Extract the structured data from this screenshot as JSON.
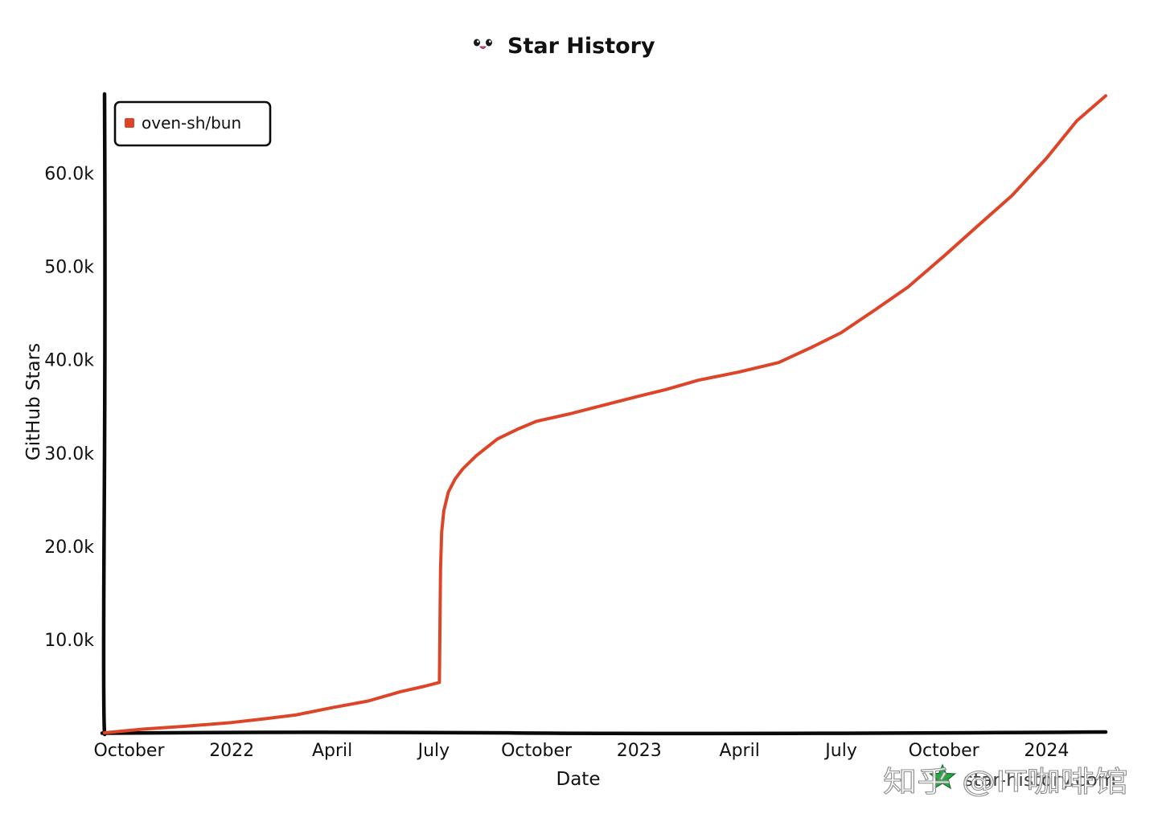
{
  "chart_data": {
    "type": "line",
    "title": "Star History",
    "xlabel": "Date",
    "ylabel": "GitHub Stars",
    "xlim": [
      "2021-09-09",
      "2024-02-23"
    ],
    "ylim": [
      0,
      68400
    ],
    "grid": false,
    "legend": {
      "position": "top-left"
    },
    "x_ticks": [
      {
        "label": "October",
        "date": "2021-10-01"
      },
      {
        "label": "2022",
        "date": "2022-01-01"
      },
      {
        "label": "April",
        "date": "2022-04-01"
      },
      {
        "label": "July",
        "date": "2022-07-01"
      },
      {
        "label": "October",
        "date": "2022-10-01"
      },
      {
        "label": "2023",
        "date": "2023-01-01"
      },
      {
        "label": "April",
        "date": "2023-04-01"
      },
      {
        "label": "July",
        "date": "2023-07-01"
      },
      {
        "label": "October",
        "date": "2023-10-01"
      },
      {
        "label": "2024",
        "date": "2024-01-01"
      }
    ],
    "y_ticks": [
      {
        "label": "10.0k",
        "value": 10000
      },
      {
        "label": "20.0k",
        "value": 20000
      },
      {
        "label": "30.0k",
        "value": 30000
      },
      {
        "label": "40.0k",
        "value": 40000
      },
      {
        "label": "50.0k",
        "value": 50000
      },
      {
        "label": "60.0k",
        "value": 60000
      }
    ],
    "series": [
      {
        "name": "oven-sh/bun",
        "color": "#dd4528",
        "points": [
          {
            "x": "2021-09-09",
            "y": 0
          },
          {
            "x": "2021-10-14",
            "y": 400
          },
          {
            "x": "2021-11-20",
            "y": 700
          },
          {
            "x": "2022-01-01",
            "y": 1100
          },
          {
            "x": "2022-01-30",
            "y": 1500
          },
          {
            "x": "2022-02-27",
            "y": 1900
          },
          {
            "x": "2022-04-01",
            "y": 2700
          },
          {
            "x": "2022-05-03",
            "y": 3400
          },
          {
            "x": "2022-06-01",
            "y": 4400
          },
          {
            "x": "2022-06-23",
            "y": 5000
          },
          {
            "x": "2022-07-06",
            "y": 5400
          },
          {
            "x": "2022-07-07",
            "y": 17500
          },
          {
            "x": "2022-07-08",
            "y": 21500
          },
          {
            "x": "2022-07-10",
            "y": 23800
          },
          {
            "x": "2022-07-14",
            "y": 25800
          },
          {
            "x": "2022-07-20",
            "y": 27200
          },
          {
            "x": "2022-07-27",
            "y": 28300
          },
          {
            "x": "2022-08-08",
            "y": 29700
          },
          {
            "x": "2022-08-27",
            "y": 31500
          },
          {
            "x": "2022-09-15",
            "y": 32600
          },
          {
            "x": "2022-10-01",
            "y": 33400
          },
          {
            "x": "2022-10-31",
            "y": 34200
          },
          {
            "x": "2022-12-06",
            "y": 35300
          },
          {
            "x": "2023-01-01",
            "y": 36100
          },
          {
            "x": "2023-01-25",
            "y": 36800
          },
          {
            "x": "2023-02-23",
            "y": 37800
          },
          {
            "x": "2023-04-01",
            "y": 38700
          },
          {
            "x": "2023-05-06",
            "y": 39700
          },
          {
            "x": "2023-06-04",
            "y": 41300
          },
          {
            "x": "2023-07-01",
            "y": 42900
          },
          {
            "x": "2023-08-01",
            "y": 45400
          },
          {
            "x": "2023-08-30",
            "y": 47800
          },
          {
            "x": "2023-10-01",
            "y": 51100
          },
          {
            "x": "2023-10-30",
            "y": 54200
          },
          {
            "x": "2023-12-01",
            "y": 57600
          },
          {
            "x": "2024-01-01",
            "y": 61600
          },
          {
            "x": "2024-01-28",
            "y": 65600
          },
          {
            "x": "2024-02-23",
            "y": 68300
          }
        ]
      }
    ]
  },
  "branding": {
    "site": "star-history.com",
    "title_icon": "face-icon",
    "logo_icon": "star-history-logo-icon",
    "logo_color": "#2aa745"
  },
  "watermark": {
    "text": "知乎 @IT咖啡馆"
  }
}
